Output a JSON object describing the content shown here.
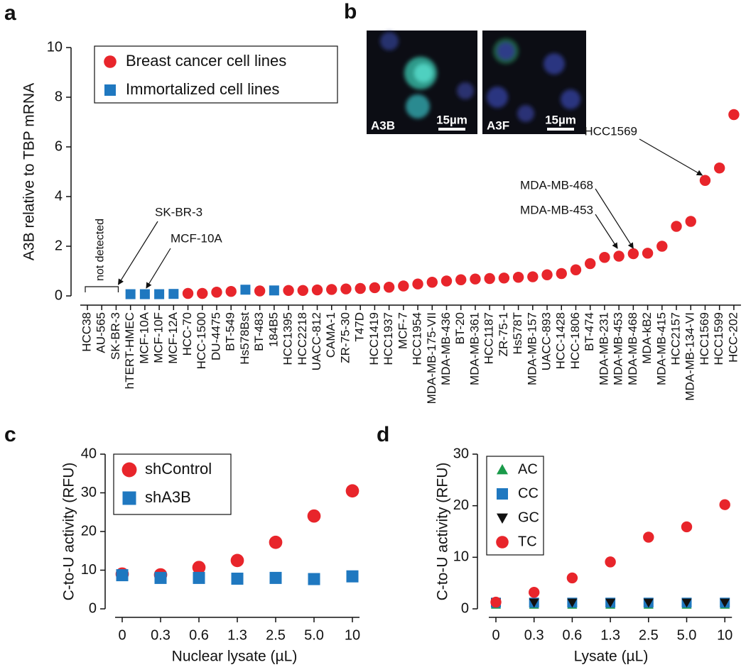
{
  "chart_data": [
    {
      "type": "scatter",
      "panel_label": "a",
      "ylabel": "A3B relative to TBP mRNA",
      "categories": [
        "HCC38",
        "AU-565",
        "SK-BR-3",
        "hTERT-HMEC",
        "MCF-10A",
        "MCF-10F",
        "MCF-12A",
        "HCC-70",
        "HCC-1500",
        "DU-4475",
        "BT-549",
        "Hs578Bst",
        "BT-483",
        "184B5",
        "HCC1395",
        "HCC2218",
        "UACC-812",
        "CAMA-1",
        "ZR-75-30",
        "T47D",
        "HCC1419",
        "HCC1937",
        "MCF-7",
        "HCC1954",
        "MDA-MB-175-VII",
        "MDA-MB-436",
        "BT-20",
        "MDA-MB-361",
        "HCC1187",
        "ZR-75-1",
        "Hs578T",
        "MDA-MB-157",
        "UACC-893",
        "HCC-1428",
        "HCC-1806",
        "BT-474",
        "MDA-MB-231",
        "MDA-MB-453",
        "MDA-MB-468",
        "MDA-kB2",
        "MDA-MB-415",
        "HCC2157",
        "MDA-MB-134-VI",
        "HCC1569",
        "HCC1599",
        "HCC-202"
      ],
      "series": [
        {
          "name": "Breast cancer cell lines",
          "color": "#e8252b",
          "marker": "circle",
          "values": [
            null,
            null,
            null,
            null,
            null,
            null,
            null,
            0.1,
            0.1,
            0.15,
            0.18,
            null,
            0.2,
            null,
            0.22,
            0.22,
            0.24,
            0.26,
            0.28,
            0.3,
            0.33,
            0.35,
            0.4,
            0.48,
            0.55,
            0.6,
            0.65,
            0.68,
            0.7,
            0.72,
            0.75,
            0.77,
            0.85,
            0.9,
            1.05,
            1.3,
            1.55,
            1.6,
            1.7,
            1.72,
            2.0,
            2.8,
            3.0,
            4.65,
            5.15,
            7.3
          ]
        },
        {
          "name": "Immortalized cell lines",
          "color": "#1f78c0",
          "marker": "square",
          "values": [
            null,
            null,
            null,
            0.07,
            0.07,
            0.07,
            0.08,
            null,
            null,
            null,
            null,
            0.25,
            null,
            0.22,
            null,
            null,
            null,
            null,
            null,
            null,
            null,
            null,
            null,
            null,
            null,
            null,
            null,
            null,
            null,
            null,
            null,
            null,
            null,
            null,
            null,
            null,
            null,
            null,
            null,
            null,
            null,
            null,
            null,
            null,
            null,
            null
          ]
        }
      ],
      "ylim": [
        0,
        10
      ],
      "yticks": [
        0,
        2,
        4,
        6,
        8,
        10
      ],
      "annotations": [
        "not detected",
        "SK-BR-3",
        "MCF-10A",
        "MDA-MB-468",
        "MDA-MB-453",
        "HCC1569"
      ]
    },
    {
      "type": "scatter",
      "panel_label": "c",
      "xlabel": "Nuclear lysate (µL)",
      "ylabel": "C-to-U activity (RFU)",
      "categories": [
        "0",
        "0.3",
        "0.6",
        "1.3",
        "2.5",
        "5.0",
        "10"
      ],
      "series": [
        {
          "name": "shControl",
          "color": "#e8252b",
          "marker": "circle",
          "values": [
            9,
            8.8,
            10.7,
            12.5,
            17.2,
            24,
            30.5
          ]
        },
        {
          "name": "shA3B",
          "color": "#1f78c0",
          "marker": "square",
          "values": [
            8.7,
            8,
            8,
            7.8,
            8,
            7.7,
            8.4
          ]
        }
      ],
      "ylim": [
        0,
        40
      ],
      "yticks": [
        0,
        10,
        20,
        30,
        40
      ]
    },
    {
      "type": "scatter",
      "panel_label": "d",
      "xlabel": "Lysate (µL)",
      "ylabel": "C-to-U activity (RFU)",
      "categories": [
        "0",
        "0.3",
        "0.6",
        "1.3",
        "2.5",
        "5.0",
        "10"
      ],
      "series": [
        {
          "name": "AC",
          "color": "#1a9a4a",
          "marker": "triangle-up",
          "values": [
            0.8,
            0.8,
            0.8,
            0.8,
            0.8,
            0.8,
            0.8
          ]
        },
        {
          "name": "CC",
          "color": "#1f78c0",
          "marker": "square",
          "values": [
            1.2,
            1.2,
            1.2,
            1.2,
            1.2,
            1.2,
            1.2
          ]
        },
        {
          "name": "GC",
          "color": "#111111",
          "marker": "triangle-down",
          "values": [
            1.2,
            1.2,
            1.2,
            1.2,
            1.2,
            1.2,
            1.2
          ]
        },
        {
          "name": "TC",
          "color": "#e8252b",
          "marker": "circle",
          "values": [
            1.3,
            3.2,
            6,
            9.1,
            13.9,
            15.9,
            20.2
          ]
        }
      ],
      "ylim": [
        0,
        30
      ],
      "yticks": [
        0,
        10,
        20,
        30
      ]
    }
  ],
  "images": {
    "panel_label": "b",
    "items": [
      {
        "label": "A3B",
        "scale": "15µm"
      },
      {
        "label": "A3F",
        "scale": "15µm"
      }
    ]
  }
}
